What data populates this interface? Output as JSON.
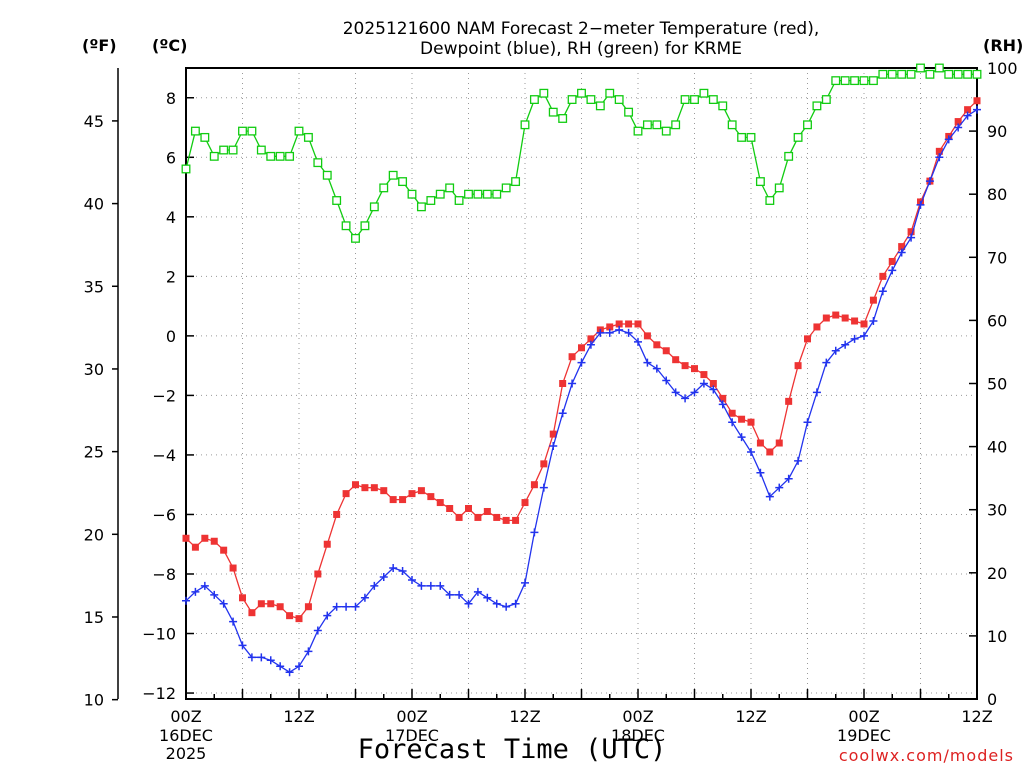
{
  "chart_data": {
    "type": "line",
    "title_line1": "2025121600 NAM Forecast 2−meter Temperature (red),",
    "title_line2": "Dewpoint (blue), RH (green) for KRME",
    "xlabel": "Forecast Time (UTC)",
    "credit": "coolwx.com/models",
    "units": {
      "fahrenheit": "(ºF)",
      "celsius": "(ºC)",
      "rh": "(RH)"
    },
    "x_ticks": [
      {
        "hour": 0,
        "label": "00Z"
      },
      {
        "hour": 12,
        "label": "12Z"
      },
      {
        "hour": 24,
        "label": "00Z"
      },
      {
        "hour": 36,
        "label": "12Z"
      },
      {
        "hour": 48,
        "label": "00Z"
      },
      {
        "hour": 60,
        "label": "12Z"
      },
      {
        "hour": 72,
        "label": "00Z"
      },
      {
        "hour": 84,
        "label": "12Z"
      }
    ],
    "date_labels": [
      {
        "hour": 0,
        "lines": [
          "16DEC",
          "2025"
        ]
      },
      {
        "hour": 24,
        "lines": [
          "17DEC"
        ]
      },
      {
        "hour": 48,
        "lines": [
          "18DEC"
        ]
      },
      {
        "hour": 72,
        "lines": [
          "19DEC"
        ]
      }
    ],
    "xlim": [
      0,
      84
    ],
    "celsius_ticks": [
      8,
      6,
      4,
      2,
      0,
      -2,
      -4,
      -6,
      -8,
      -10,
      -12
    ],
    "celsius_tick_labels": [
      "8",
      "6",
      "4",
      "2",
      "0",
      "−2",
      "−4",
      "−6",
      "−8",
      "−10",
      "−12"
    ],
    "fahrenheit_ticks": [
      45,
      40,
      35,
      30,
      25,
      20,
      15,
      10
    ],
    "fahrenheit_tick_labels": [
      "45",
      "40",
      "35",
      "30",
      "25",
      "20",
      "15",
      "10"
    ],
    "rh_ticks": [
      100,
      90,
      80,
      70,
      60,
      50,
      40,
      30,
      20,
      10,
      0
    ],
    "rh_tick_labels": [
      "100",
      "90",
      "80",
      "70",
      "60",
      "50",
      "40",
      "30",
      "20",
      "10",
      "0"
    ],
    "ylim_celsius": [
      -12.2,
      9.0
    ],
    "ylim_rh": [
      0,
      100
    ],
    "grid": true,
    "colors": {
      "temperature": "#ee3333",
      "dewpoint": "#2233ee",
      "rh": "#11cc11"
    },
    "series": [
      {
        "key": "temperature",
        "marker": "square",
        "x": [
          0,
          1,
          2,
          3,
          4,
          5,
          6,
          7,
          8,
          9,
          10,
          11,
          12,
          13,
          14,
          15,
          16,
          17,
          18,
          19,
          20,
          21,
          22,
          23,
          24,
          25,
          26,
          27,
          28,
          29,
          30,
          31,
          32,
          33,
          34,
          35,
          36,
          37,
          38,
          39,
          40,
          41,
          42,
          43,
          44,
          45,
          46,
          47,
          48,
          49,
          50,
          51,
          52,
          53,
          54,
          55,
          56,
          57,
          58,
          59,
          60,
          61,
          62,
          63,
          64,
          65,
          66,
          67,
          68,
          69,
          70,
          71,
          72,
          73,
          74,
          75,
          76,
          77,
          78,
          79,
          80,
          81,
          82,
          83,
          84
        ],
        "values": [
          -6.8,
          -7.1,
          -6.8,
          -6.9,
          -7.2,
          -7.8,
          -8.8,
          -9.3,
          -9.0,
          -9.0,
          -9.1,
          -9.4,
          -9.5,
          -9.1,
          -8.0,
          -7.0,
          -6.0,
          -5.3,
          -5.0,
          -5.1,
          -5.1,
          -5.2,
          -5.5,
          -5.5,
          -5.3,
          -5.2,
          -5.4,
          -5.6,
          -5.8,
          -6.1,
          -5.8,
          -6.1,
          -5.9,
          -6.1,
          -6.2,
          -6.2,
          -5.6,
          -5.0,
          -4.3,
          -3.3,
          -1.6,
          -0.7,
          -0.4,
          -0.1,
          0.2,
          0.3,
          0.4,
          0.4,
          0.4,
          0.0,
          -0.3,
          -0.5,
          -0.8,
          -1.0,
          -1.1,
          -1.3,
          -1.6,
          -2.1,
          -2.6,
          -2.8,
          -2.9,
          -3.6,
          -3.9,
          -3.6,
          -2.2,
          -1.0,
          -0.1,
          0.3,
          0.6,
          0.7,
          0.6,
          0.5,
          0.4,
          1.2,
          2.0,
          2.5,
          3.0,
          3.5,
          4.5,
          5.2,
          6.2,
          6.7,
          7.2,
          7.6,
          7.9
        ]
      },
      {
        "key": "dewpoint",
        "marker": "plus",
        "x": [
          0,
          1,
          2,
          3,
          4,
          5,
          6,
          7,
          8,
          9,
          10,
          11,
          12,
          13,
          14,
          15,
          16,
          17,
          18,
          19,
          20,
          21,
          22,
          23,
          24,
          25,
          26,
          27,
          28,
          29,
          30,
          31,
          32,
          33,
          34,
          35,
          36,
          37,
          38,
          39,
          40,
          41,
          42,
          43,
          44,
          45,
          46,
          47,
          48,
          49,
          50,
          51,
          52,
          53,
          54,
          55,
          56,
          57,
          58,
          59,
          60,
          61,
          62,
          63,
          64,
          65,
          66,
          67,
          68,
          69,
          70,
          71,
          72,
          73,
          74,
          75,
          76,
          77,
          78,
          79,
          80,
          81,
          82,
          83,
          84
        ],
        "values": [
          -8.9,
          -8.6,
          -8.4,
          -8.7,
          -9.0,
          -9.6,
          -10.4,
          -10.8,
          -10.8,
          -10.9,
          -11.1,
          -11.3,
          -11.1,
          -10.6,
          -9.9,
          -9.4,
          -9.1,
          -9.1,
          -9.1,
          -8.8,
          -8.4,
          -8.1,
          -7.8,
          -7.9,
          -8.2,
          -8.4,
          -8.4,
          -8.4,
          -8.7,
          -8.7,
          -9.0,
          -8.6,
          -8.8,
          -9.0,
          -9.1,
          -9.0,
          -8.3,
          -6.6,
          -5.1,
          -3.7,
          -2.6,
          -1.6,
          -0.9,
          -0.3,
          0.1,
          0.1,
          0.2,
          0.1,
          -0.2,
          -0.9,
          -1.1,
          -1.5,
          -1.9,
          -2.1,
          -1.9,
          -1.6,
          -1.8,
          -2.3,
          -2.9,
          -3.4,
          -3.9,
          -4.6,
          -5.4,
          -5.1,
          -4.8,
          -4.2,
          -2.9,
          -1.9,
          -0.9,
          -0.5,
          -0.3,
          -0.1,
          0.0,
          0.5,
          1.5,
          2.2,
          2.8,
          3.3,
          4.4,
          5.2,
          6.0,
          6.6,
          7.0,
          7.4,
          7.6
        ]
      },
      {
        "key": "rh",
        "marker": "open-square",
        "x": [
          0,
          1,
          2,
          3,
          4,
          5,
          6,
          7,
          8,
          9,
          10,
          11,
          12,
          13,
          14,
          15,
          16,
          17,
          18,
          19,
          20,
          21,
          22,
          23,
          24,
          25,
          26,
          27,
          28,
          29,
          30,
          31,
          32,
          33,
          34,
          35,
          36,
          37,
          38,
          39,
          40,
          41,
          42,
          43,
          44,
          45,
          46,
          47,
          48,
          49,
          50,
          51,
          52,
          53,
          54,
          55,
          56,
          57,
          58,
          59,
          60,
          61,
          62,
          63,
          64,
          65,
          66,
          67,
          68,
          69,
          70,
          71,
          72,
          73,
          74,
          75,
          76,
          77,
          78,
          79,
          80,
          81,
          82,
          83,
          84
        ],
        "values": [
          84,
          90,
          89,
          86,
          87,
          87,
          90,
          90,
          87,
          86,
          86,
          86,
          90,
          89,
          85,
          83,
          79,
          75,
          73,
          75,
          78,
          81,
          83,
          82,
          80,
          78,
          79,
          80,
          81,
          79,
          80,
          80,
          80,
          80,
          81,
          82,
          91,
          95,
          96,
          93,
          92,
          95,
          96,
          95,
          94,
          96,
          95,
          93,
          90,
          91,
          91,
          90,
          91,
          95,
          95,
          96,
          95,
          94,
          91,
          89,
          89,
          82,
          79,
          81,
          86,
          89,
          91,
          94,
          95,
          98,
          98,
          98,
          98,
          98,
          99,
          99,
          99,
          99,
          100,
          99,
          100,
          99,
          99,
          99,
          99
        ]
      }
    ]
  }
}
